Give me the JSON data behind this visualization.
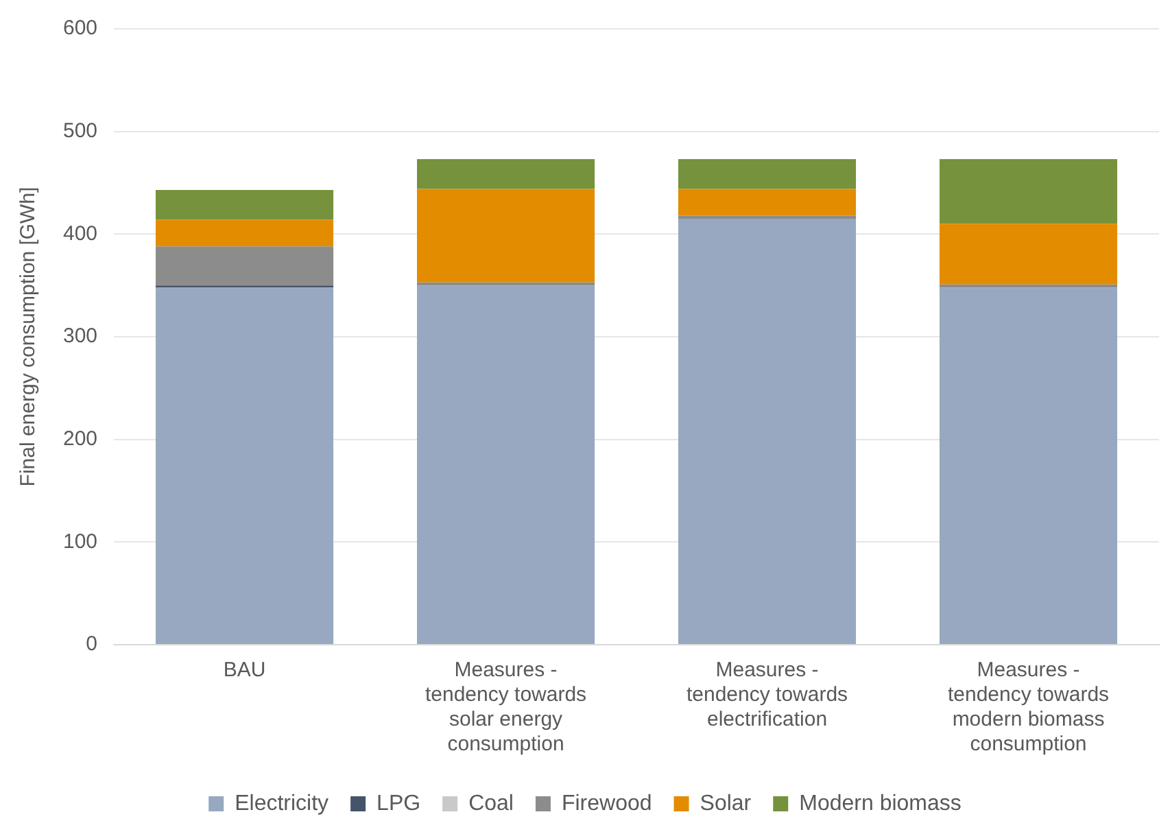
{
  "chart_data": {
    "type": "bar",
    "stacked": true,
    "ylabel": "Final energy consumption [GWh]",
    "categories": [
      "BAU",
      "Measures - tendency towards solar energy consumption",
      "Measures - tendency towards electrification",
      "Measures - tendency towards modern biomass consumption"
    ],
    "series": [
      {
        "name": "Electricity",
        "color": "#97a8c0",
        "values": [
          348,
          350,
          415,
          348
        ]
      },
      {
        "name": "LPG",
        "color": "#44546a",
        "values": [
          2,
          0,
          0,
          0
        ]
      },
      {
        "name": "Coal",
        "color": "#c9c9c9",
        "values": [
          0,
          0,
          0,
          0
        ]
      },
      {
        "name": "Firewood",
        "color": "#8c8c8c",
        "values": [
          38,
          3,
          3,
          3
        ]
      },
      {
        "name": "Solar",
        "color": "#e38c00",
        "values": [
          26,
          91,
          26,
          59
        ]
      },
      {
        "name": "Modern biomass",
        "color": "#76923c",
        "values": [
          29,
          29,
          29,
          63
        ]
      }
    ],
    "ylim": [
      0,
      600
    ],
    "yticks": [
      0,
      100,
      200,
      300,
      400,
      500,
      600
    ],
    "grid": "y",
    "legend": "bottom"
  }
}
